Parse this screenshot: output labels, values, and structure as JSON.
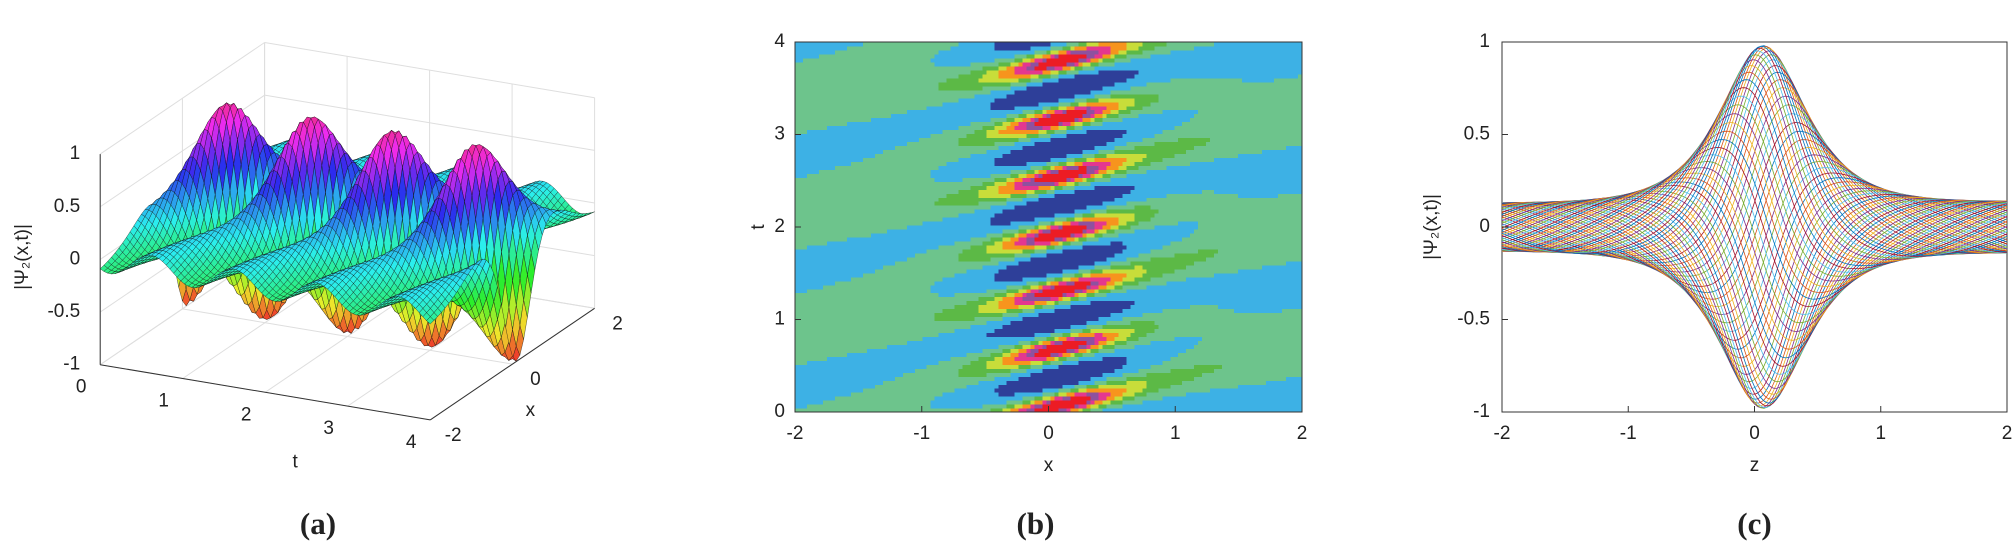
{
  "chart_data": [
    {
      "type": "surface",
      "label": "(a)",
      "xlabel": "t",
      "ylabel": "x",
      "zlabel": "|Ψ₂(x,t)|",
      "xlim": [
        0,
        4
      ],
      "xticks": [
        0,
        1,
        2,
        3,
        4
      ],
      "ylim": [
        -2,
        2
      ],
      "yticks": [
        -2,
        0,
        2
      ],
      "zlim": [
        -1,
        1
      ],
      "zticks": [
        -1,
        -0.5,
        0,
        0.5,
        1
      ],
      "grid": true
    },
    {
      "type": "contour",
      "label": "(b)",
      "xlabel": "x",
      "ylabel": "t",
      "xlim": [
        -2,
        2
      ],
      "xticks": [
        -2,
        -1,
        0,
        1,
        2
      ],
      "ylim": [
        0,
        4
      ],
      "yticks": [
        0,
        1,
        2,
        3,
        4
      ]
    },
    {
      "type": "line",
      "label": "(c)",
      "xlabel": "z",
      "ylabel": "|Ψ₂(x,t)|",
      "xlim": [
        -2,
        2
      ],
      "xticks": [
        -2,
        -1,
        0,
        1,
        2
      ],
      "ylim": [
        -1,
        1
      ],
      "yticks": [
        -1,
        -0.5,
        0,
        0.5,
        1
      ]
    }
  ]
}
